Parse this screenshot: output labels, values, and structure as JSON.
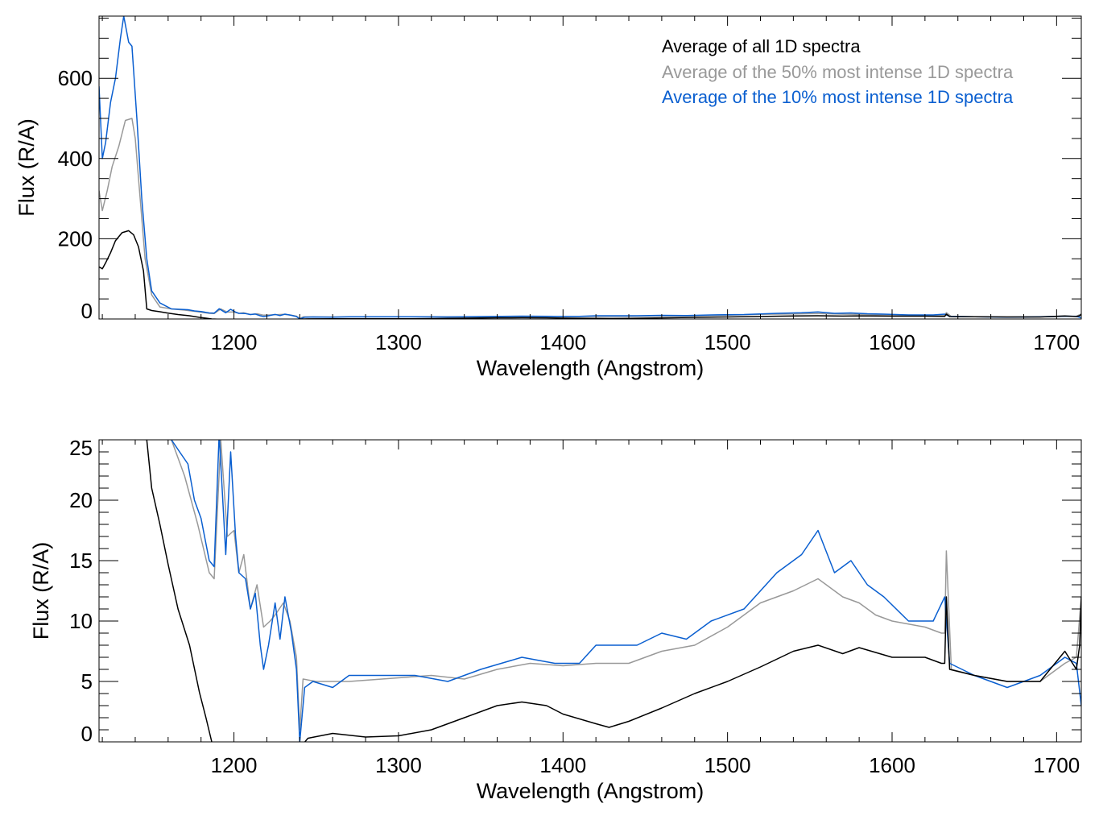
{
  "colors": {
    "all": "#000000",
    "p50": "#999999",
    "p10": "#0a5fd0"
  },
  "chart_data": [
    {
      "type": "line",
      "panel": "top",
      "xlabel": "Wavelength (Angstrom)",
      "ylabel": "Flux (R/A)",
      "xlim": [
        1118,
        1715
      ],
      "ylim": [
        0,
        755
      ],
      "xticks": [
        1200,
        1300,
        1400,
        1500,
        1600,
        1700
      ],
      "xtick_labels": [
        "1200",
        "1300",
        "1400",
        "1500",
        "1600",
        "1700"
      ],
      "yticks": [
        0,
        200,
        400,
        600
      ],
      "ytick_labels": [
        "0",
        "200",
        "400",
        "600"
      ],
      "x_minor_step": 20,
      "y_minor_step": 50,
      "legend": {
        "placement": "top-right",
        "entries": [
          {
            "label": "Average of all 1D spectra",
            "series": "all"
          },
          {
            "label": "Average of the 50% most intense 1D spectra",
            "series": "p50"
          },
          {
            "label": "Average of the 10% most intense 1D spectra",
            "series": "p10"
          }
        ]
      }
    },
    {
      "type": "line",
      "panel": "bottom",
      "xlabel": "Wavelength (Angstrom)",
      "ylabel": "Flux (R/A)",
      "xlim": [
        1118,
        1715
      ],
      "ylim": [
        0,
        25
      ],
      "xticks": [
        1200,
        1300,
        1400,
        1500,
        1600,
        1700
      ],
      "xtick_labels": [
        "1200",
        "1300",
        "1400",
        "1500",
        "1600",
        "1700"
      ],
      "yticks": [
        0,
        5,
        10,
        15,
        20,
        25
      ],
      "ytick_labels": [
        "0",
        "5",
        "10",
        "15",
        "20",
        "25"
      ],
      "x_minor_step": 20,
      "y_minor_step": 1
    }
  ],
  "series": {
    "all": [
      [
        1118,
        130
      ],
      [
        1120,
        125
      ],
      [
        1122,
        140
      ],
      [
        1125,
        165
      ],
      [
        1128,
        195
      ],
      [
        1132,
        215
      ],
      [
        1136,
        220
      ],
      [
        1139,
        210
      ],
      [
        1142,
        180
      ],
      [
        1145,
        120
      ],
      [
        1147,
        25
      ],
      [
        1150,
        21
      ],
      [
        1155,
        18
      ],
      [
        1160,
        14.7
      ],
      [
        1166,
        11
      ],
      [
        1173,
        8
      ],
      [
        1179,
        4.1
      ],
      [
        1183,
        2
      ],
      [
        1186.5,
        0
      ],
      [
        1190,
        -0.5
      ],
      [
        1240,
        -0.5
      ],
      [
        1245,
        0.3
      ],
      [
        1260,
        0.7
      ],
      [
        1280,
        0.4
      ],
      [
        1300,
        0.5
      ],
      [
        1320,
        1.0
      ],
      [
        1340,
        2.0
      ],
      [
        1360,
        3.0
      ],
      [
        1375,
        3.3
      ],
      [
        1390,
        3.0
      ],
      [
        1400,
        2.3
      ],
      [
        1420,
        1.5
      ],
      [
        1428,
        1.2
      ],
      [
        1440,
        1.7
      ],
      [
        1460,
        2.8
      ],
      [
        1480,
        4.0
      ],
      [
        1500,
        5.0
      ],
      [
        1520,
        6.2
      ],
      [
        1540,
        7.5
      ],
      [
        1555,
        8.0
      ],
      [
        1570,
        7.3
      ],
      [
        1580,
        7.8
      ],
      [
        1600,
        7.0
      ],
      [
        1620,
        7.0
      ],
      [
        1630,
        6.5
      ],
      [
        1632,
        6.5
      ],
      [
        1633,
        12
      ],
      [
        1635,
        6
      ],
      [
        1650,
        5.5
      ],
      [
        1670,
        5.0
      ],
      [
        1690,
        5.0
      ],
      [
        1705,
        7.5
      ],
      [
        1712,
        6
      ],
      [
        1714,
        8
      ],
      [
        1715,
        12
      ]
    ],
    "p50": [
      [
        1118,
        320
      ],
      [
        1120,
        270
      ],
      [
        1123,
        320
      ],
      [
        1126,
        380
      ],
      [
        1130,
        430
      ],
      [
        1134,
        495
      ],
      [
        1138,
        500
      ],
      [
        1140,
        450
      ],
      [
        1143,
        300
      ],
      [
        1146,
        150
      ],
      [
        1150,
        60
      ],
      [
        1155,
        30
      ],
      [
        1162,
        25
      ],
      [
        1170,
        22
      ],
      [
        1178,
        18
      ],
      [
        1185,
        14
      ],
      [
        1188,
        13.5
      ],
      [
        1192,
        25
      ],
      [
        1196,
        17
      ],
      [
        1200,
        17.5
      ],
      [
        1203,
        14
      ],
      [
        1206,
        15.5
      ],
      [
        1210,
        11
      ],
      [
        1214,
        13
      ],
      [
        1218,
        9.5
      ],
      [
        1222,
        10
      ],
      [
        1225,
        10.5
      ],
      [
        1230,
        11.5
      ],
      [
        1234,
        10
      ],
      [
        1238,
        7
      ],
      [
        1240,
        1
      ],
      [
        1242,
        5.2
      ],
      [
        1250,
        5.0
      ],
      [
        1270,
        5
      ],
      [
        1300,
        5.3
      ],
      [
        1320,
        5.5
      ],
      [
        1340,
        5.2
      ],
      [
        1360,
        6
      ],
      [
        1380,
        6.5
      ],
      [
        1400,
        6.3
      ],
      [
        1420,
        6.5
      ],
      [
        1440,
        6.5
      ],
      [
        1460,
        7.5
      ],
      [
        1480,
        8.0
      ],
      [
        1500,
        9.5
      ],
      [
        1520,
        11.5
      ],
      [
        1540,
        12.5
      ],
      [
        1555,
        13.5
      ],
      [
        1570,
        12.0
      ],
      [
        1580,
        11.5
      ],
      [
        1590,
        10.5
      ],
      [
        1600,
        10.0
      ],
      [
        1620,
        9.5
      ],
      [
        1630,
        9.0
      ],
      [
        1632,
        9
      ],
      [
        1633,
        15.8
      ],
      [
        1636,
        6
      ],
      [
        1650,
        5.5
      ],
      [
        1670,
        5.0
      ],
      [
        1690,
        5.0
      ],
      [
        1705,
        6.5
      ],
      [
        1712,
        7
      ],
      [
        1715,
        12
      ]
    ],
    "p10": [
      [
        1118,
        580
      ],
      [
        1120,
        400
      ],
      [
        1122,
        440
      ],
      [
        1125,
        540
      ],
      [
        1128,
        600
      ],
      [
        1131,
        700
      ],
      [
        1133,
        755
      ],
      [
        1136,
        690
      ],
      [
        1138,
        680
      ],
      [
        1141,
        500
      ],
      [
        1144,
        300
      ],
      [
        1147,
        150
      ],
      [
        1150,
        70
      ],
      [
        1155,
        40
      ],
      [
        1162,
        25
      ],
      [
        1167,
        24
      ],
      [
        1172,
        23
      ],
      [
        1176,
        20
      ],
      [
        1180,
        18.5
      ],
      [
        1185,
        15
      ],
      [
        1188,
        14.5
      ],
      [
        1191,
        25.5
      ],
      [
        1195,
        15.5
      ],
      [
        1198,
        24
      ],
      [
        1201,
        17
      ],
      [
        1203,
        14
      ],
      [
        1207,
        13.5
      ],
      [
        1210,
        11
      ],
      [
        1213,
        12.3
      ],
      [
        1216,
        8
      ],
      [
        1218,
        6
      ],
      [
        1221,
        8
      ],
      [
        1225,
        11.5
      ],
      [
        1228,
        8.5
      ],
      [
        1231,
        12
      ],
      [
        1235,
        9.0
      ],
      [
        1238,
        6
      ],
      [
        1240,
        0
      ],
      [
        1243,
        4.5
      ],
      [
        1248,
        5
      ],
      [
        1260,
        4.5
      ],
      [
        1270,
        5.5
      ],
      [
        1290,
        5.5
      ],
      [
        1310,
        5.5
      ],
      [
        1330,
        5
      ],
      [
        1350,
        6
      ],
      [
        1375,
        7
      ],
      [
        1395,
        6.5
      ],
      [
        1410,
        6.5
      ],
      [
        1420,
        8
      ],
      [
        1445,
        8
      ],
      [
        1460,
        9
      ],
      [
        1475,
        8.5
      ],
      [
        1490,
        10
      ],
      [
        1510,
        11
      ],
      [
        1530,
        14
      ],
      [
        1545,
        15.5
      ],
      [
        1555,
        17.5
      ],
      [
        1565,
        14
      ],
      [
        1575,
        15
      ],
      [
        1585,
        13
      ],
      [
        1595,
        12
      ],
      [
        1610,
        10
      ],
      [
        1625,
        10
      ],
      [
        1632,
        12
      ],
      [
        1635,
        6.5
      ],
      [
        1650,
        5.5
      ],
      [
        1670,
        4.5
      ],
      [
        1690,
        5.5
      ],
      [
        1705,
        7
      ],
      [
        1712,
        6.5
      ],
      [
        1715,
        3
      ]
    ]
  }
}
